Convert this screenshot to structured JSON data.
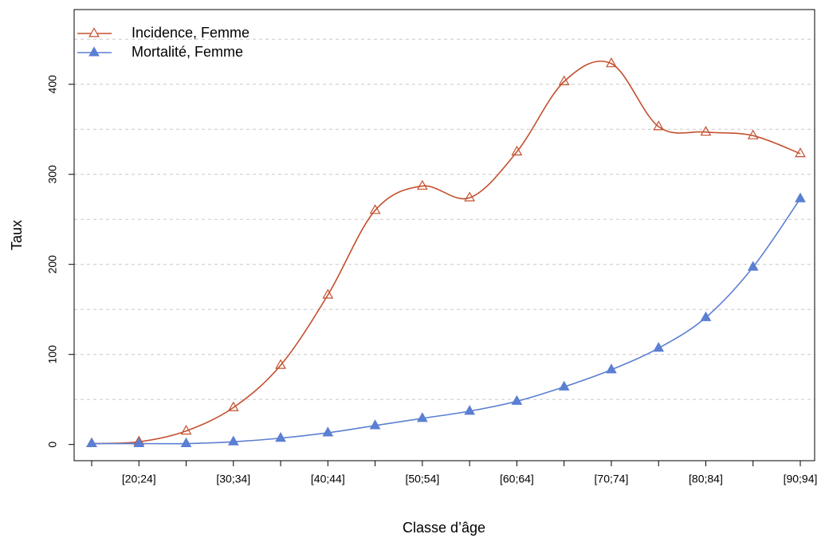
{
  "chart_data": {
    "type": "line",
    "x_label": "Classe d’âge",
    "y_label": "Taux",
    "categories": [
      null,
      "[20;24]",
      null,
      "[30;34]",
      null,
      "[40;44]",
      null,
      "[50;54]",
      null,
      "[60;64]",
      null,
      "[70;74]",
      null,
      "[80;84]",
      null,
      "[90;94]"
    ],
    "series": [
      {
        "name": "Incidence, Femme",
        "color": "#c4502e",
        "marker": "open-triangle",
        "values": [
          1,
          3,
          15,
          41,
          88,
          166,
          260,
          287,
          274,
          325,
          403,
          423,
          353,
          347,
          343,
          323
        ]
      },
      {
        "name": "Mortalité, Femme",
        "color": "#5b7fd2",
        "marker": "filled-triangle",
        "values": [
          1,
          1,
          1,
          3,
          7,
          13,
          21,
          29,
          37,
          48,
          64,
          83,
          107,
          141,
          197,
          273
        ]
      }
    ],
    "ylim": [
      -18,
      483
    ],
    "yticks": [
      0,
      100,
      200,
      300,
      400
    ],
    "ygrid": [
      50,
      100,
      150,
      200,
      250,
      300,
      350,
      400,
      450
    ],
    "legend": "top-left"
  }
}
